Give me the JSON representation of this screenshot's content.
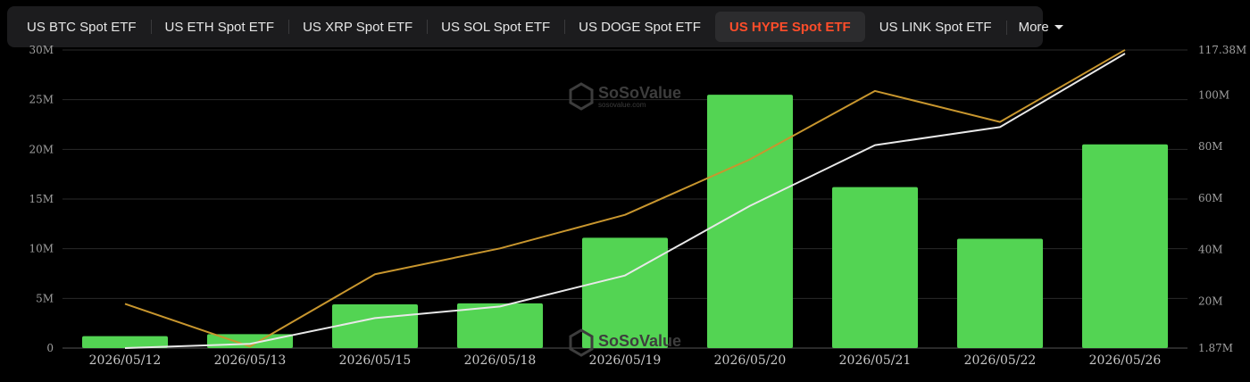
{
  "tabs": [
    {
      "label": "US BTC Spot ETF",
      "active": false
    },
    {
      "label": "US ETH Spot ETF",
      "active": false
    },
    {
      "label": "US XRP Spot ETF",
      "active": false
    },
    {
      "label": "US SOL Spot ETF",
      "active": false
    },
    {
      "label": "US DOGE Spot ETF",
      "active": false
    },
    {
      "label": "US HYPE Spot ETF",
      "active": true
    },
    {
      "label": "US LINK Spot ETF",
      "active": false
    }
  ],
  "more_label": "More",
  "watermark": {
    "name": "SoSoValue",
    "url": "sosovalue.com"
  },
  "colors": {
    "bar": "#53d453",
    "line_gold": "#c8962e",
    "line_white": "#e8e8e8",
    "accent": "#ff4d2a"
  },
  "chart_data": {
    "type": "bar",
    "categories": [
      "2026/05/12",
      "2026/05/13",
      "2026/05/15",
      "2026/05/18",
      "2026/05/19",
      "2026/05/20",
      "2026/05/21",
      "2026/05/22",
      "2026/05/26"
    ],
    "series": [
      {
        "type": "bar",
        "axis": "left",
        "values": [
          1.2,
          1.4,
          4.4,
          4.5,
          11.1,
          25.5,
          16.2,
          11.0,
          20.5
        ]
      },
      {
        "type": "line",
        "axis": "right",
        "color": "gold",
        "values": [
          19.0,
          2.5,
          30.5,
          40.5,
          53.5,
          75.0,
          101.5,
          89.5,
          117.4
        ]
      },
      {
        "type": "line",
        "axis": "right",
        "color": "white",
        "values": [
          1.87,
          3.5,
          13.5,
          18.0,
          30.0,
          57.0,
          80.5,
          87.5,
          116.0
        ]
      }
    ],
    "left_axis": {
      "ticks": [
        0,
        5,
        10,
        15,
        20,
        25,
        30
      ],
      "tick_labels": [
        "0",
        "5M",
        "10M",
        "15M",
        "20M",
        "25M",
        "30M"
      ],
      "ylim": [
        0,
        30
      ]
    },
    "right_axis": {
      "ticks": [
        1.87,
        20,
        40,
        60,
        80,
        100,
        117.38
      ],
      "tick_labels": [
        "1.87M",
        "20M",
        "40M",
        "60M",
        "80M",
        "100M",
        "117.38M"
      ],
      "ylim": [
        1.87,
        117.38
      ]
    },
    "grid": true
  }
}
